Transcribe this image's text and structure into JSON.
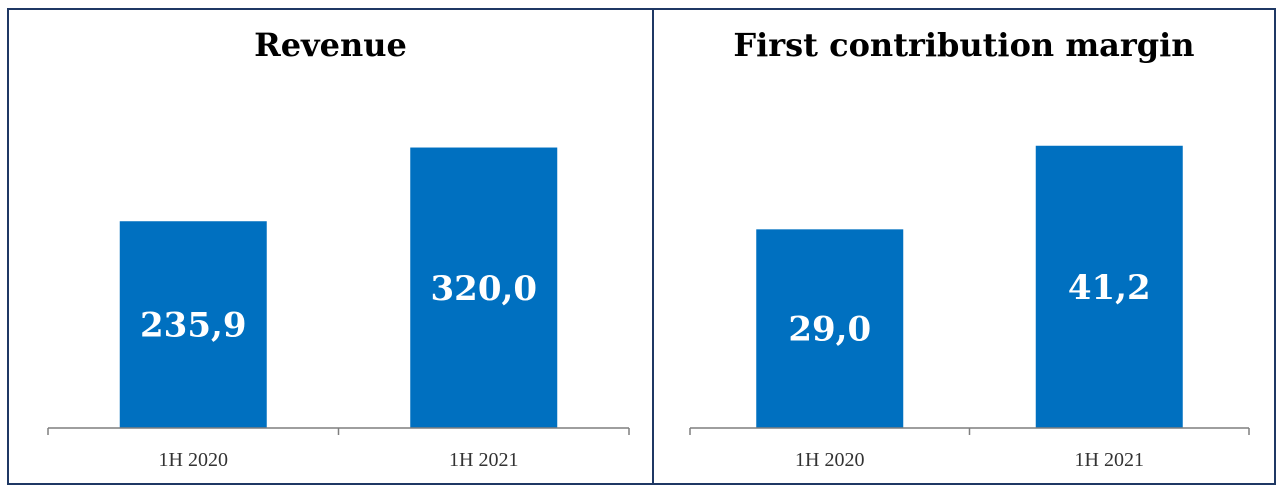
{
  "colors": {
    "bar": "#0070C0",
    "axis": "#7f7f7f",
    "frame": "#1f3864"
  },
  "chart_data": [
    {
      "type": "bar",
      "title": "Revenue",
      "categories": [
        "1H 2020",
        "1H 2021"
      ],
      "values": [
        235.9,
        320.0
      ],
      "value_labels": [
        "235,9",
        "320,0"
      ],
      "ylim": [
        0,
        340
      ],
      "grid": false,
      "legend": "none"
    },
    {
      "type": "bar",
      "title": "First contribution margin",
      "categories": [
        "1H 2020",
        "1H 2021"
      ],
      "values": [
        29.0,
        41.2
      ],
      "value_labels": [
        "29,0",
        "41,2"
      ],
      "ylim": [
        0,
        43.5
      ],
      "grid": false,
      "legend": "none"
    }
  ]
}
